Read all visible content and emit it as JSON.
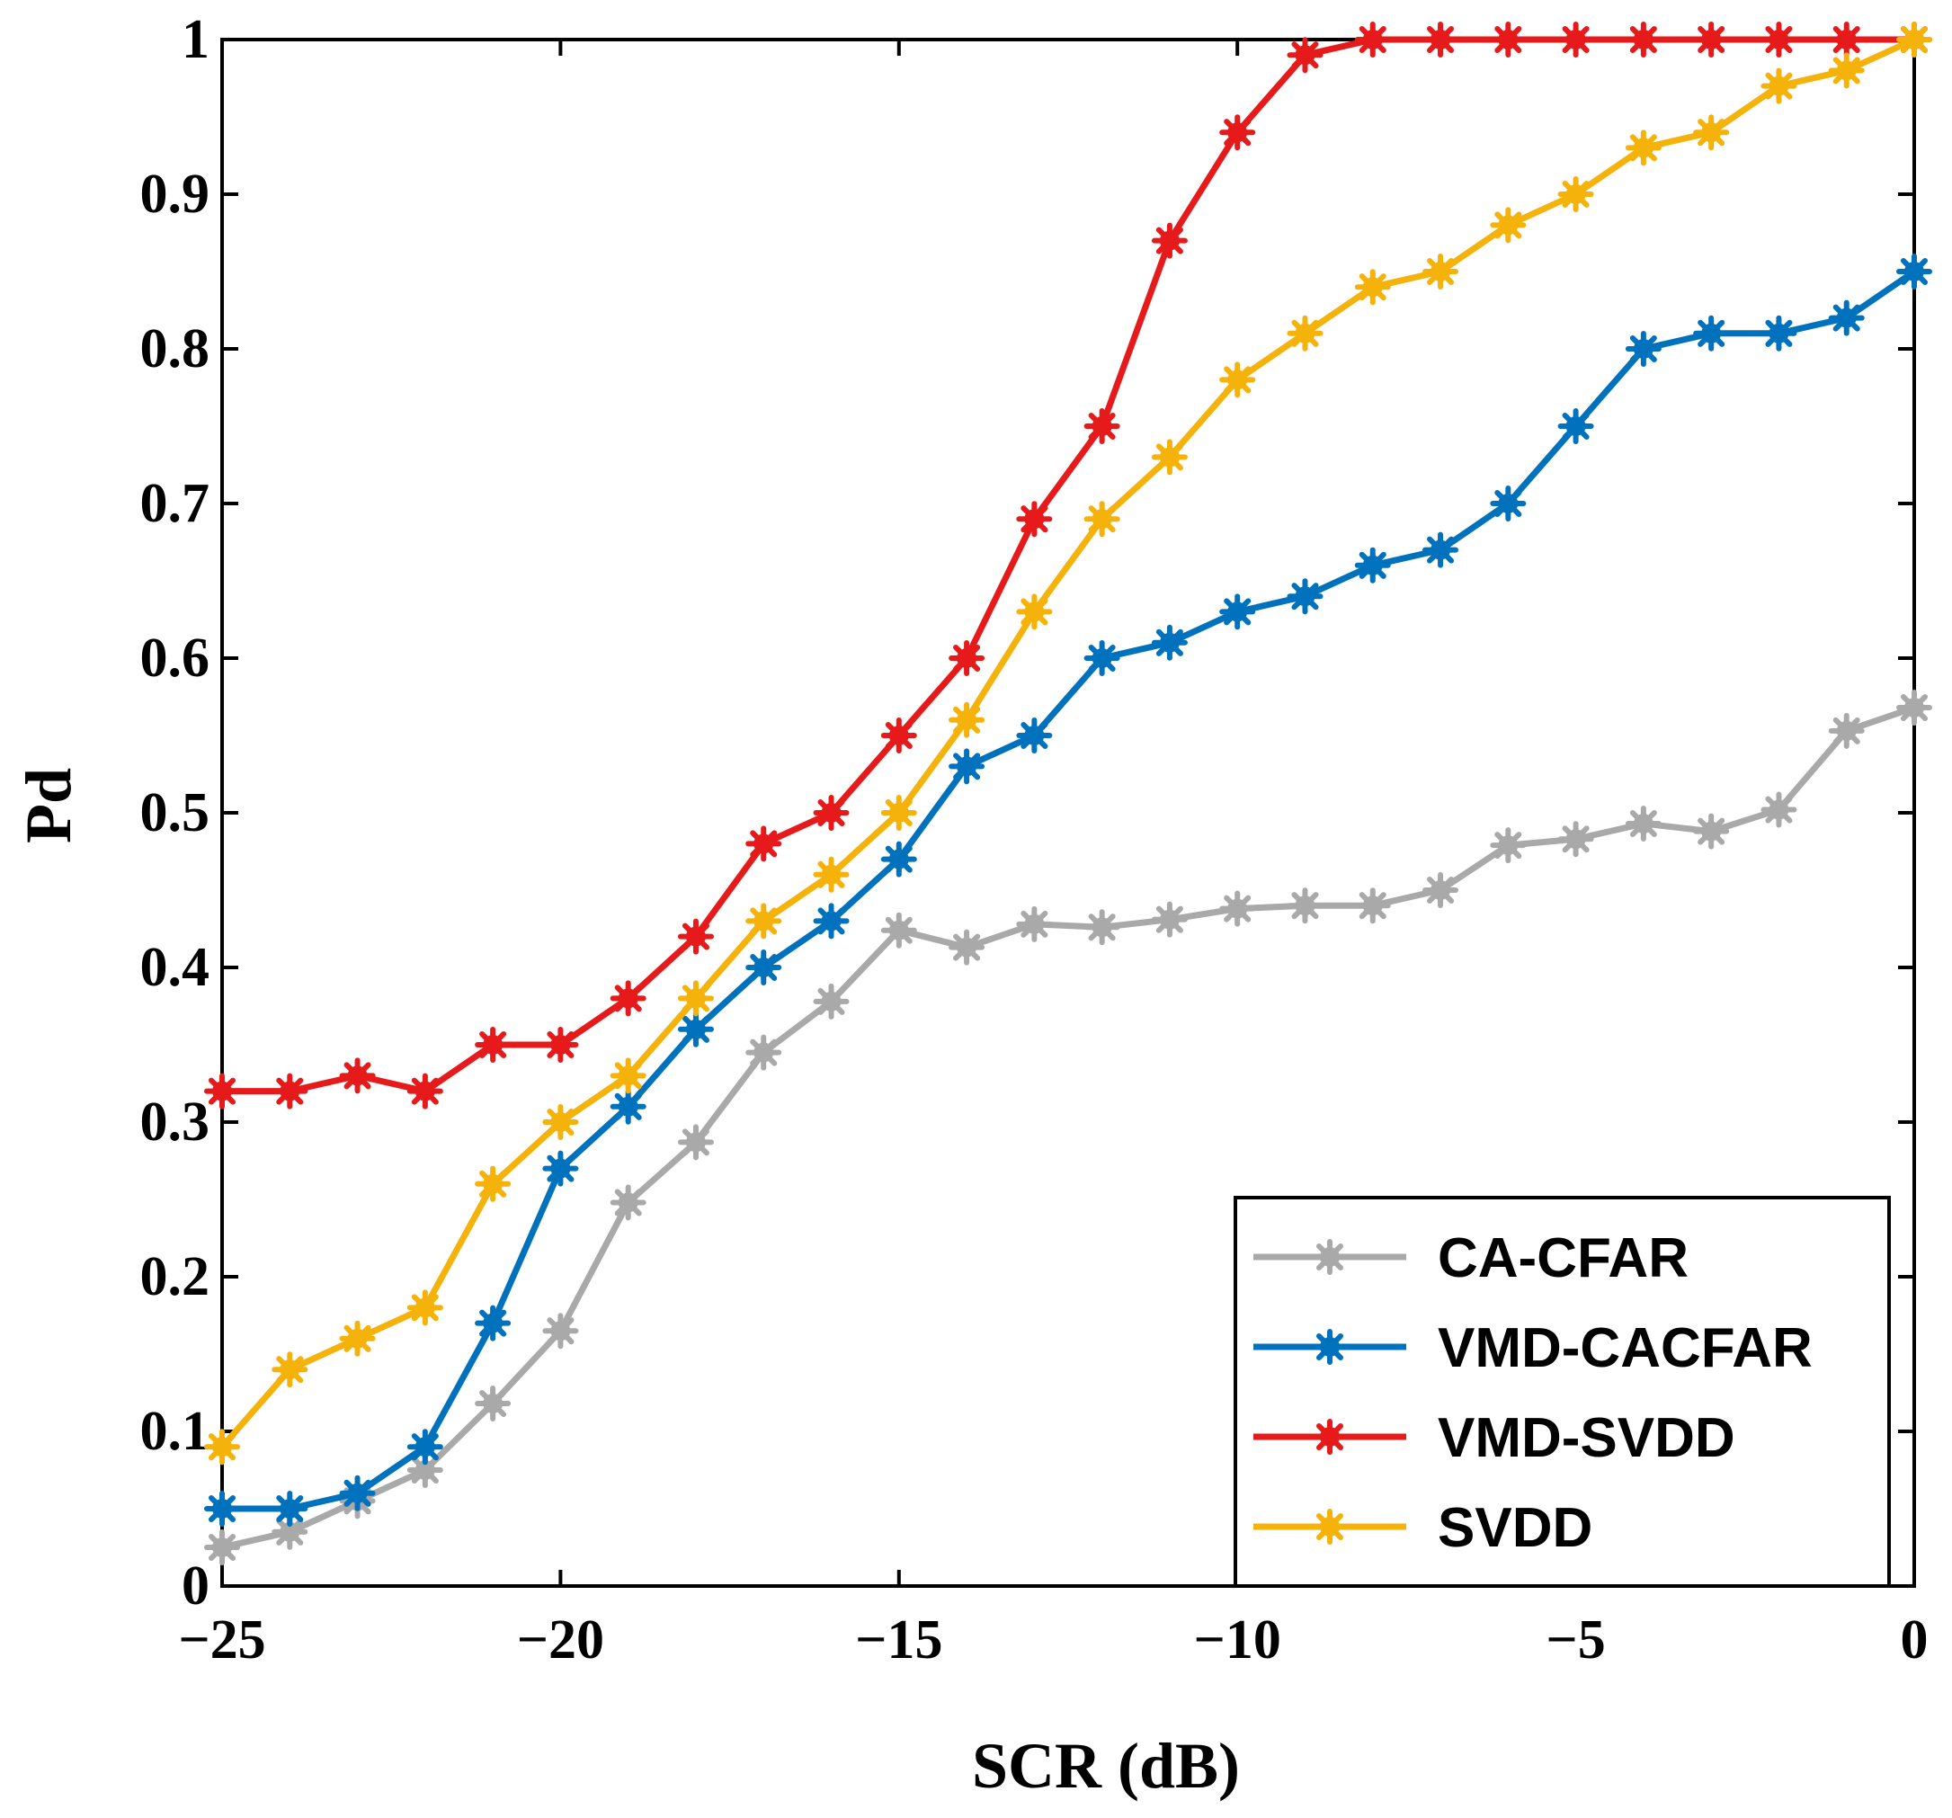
{
  "chart_data": {
    "type": "line",
    "title": "",
    "xlabel": "SCR (dB)",
    "ylabel": "Pd",
    "xlim": [
      -25,
      0
    ],
    "ylim": [
      0,
      1
    ],
    "xticks": [
      -25,
      -20,
      -15,
      -10,
      -5,
      0
    ],
    "xtick_labels": [
      "−25",
      "−20",
      "−15",
      "−10",
      "−5",
      "0"
    ],
    "yticks": [
      0,
      0.1,
      0.2,
      0.3,
      0.4,
      0.5,
      0.6,
      0.7,
      0.8,
      0.9,
      1
    ],
    "ytick_labels": [
      "0",
      "0.1",
      "0.2",
      "0.3",
      "0.4",
      "0.5",
      "0.6",
      "0.7",
      "0.8",
      "0.9",
      "1"
    ],
    "grid": false,
    "legend_position": "bottom-right",
    "x": [
      -25,
      -24,
      -23,
      -22,
      -21,
      -20,
      -19,
      -18,
      -17,
      -16,
      -15,
      -14,
      -13,
      -12,
      -11,
      -10,
      -9,
      -8,
      -7,
      -6,
      -5,
      -4,
      -3,
      -2,
      -1,
      0
    ],
    "series": [
      {
        "name": "CA-CFAR",
        "color": "#a9a9a9",
        "values": [
          0.025,
          0.035,
          0.055,
          0.075,
          0.118,
          0.165,
          0.248,
          0.287,
          0.345,
          0.378,
          0.424,
          0.413,
          0.428,
          0.426,
          0.431,
          0.438,
          0.44,
          0.44,
          0.45,
          0.479,
          0.483,
          0.493,
          0.488,
          0.502,
          0.553,
          0.568
        ]
      },
      {
        "name": "VMD-CACFAR",
        "color": "#0072bd",
        "values": [
          0.05,
          0.05,
          0.06,
          0.09,
          0.17,
          0.27,
          0.31,
          0.36,
          0.4,
          0.43,
          0.47,
          0.53,
          0.55,
          0.6,
          0.61,
          0.63,
          0.64,
          0.66,
          0.67,
          0.7,
          0.75,
          0.8,
          0.81,
          0.81,
          0.82,
          0.85
        ]
      },
      {
        "name": "VMD-SVDD",
        "color": "#e61a1a",
        "values": [
          0.32,
          0.32,
          0.33,
          0.32,
          0.35,
          0.35,
          0.38,
          0.42,
          0.48,
          0.5,
          0.55,
          0.6,
          0.69,
          0.75,
          0.87,
          0.94,
          0.99,
          1.0,
          1.0,
          1.0,
          1.0,
          1.0,
          1.0,
          1.0,
          1.0,
          1.0
        ]
      },
      {
        "name": "SVDD",
        "color": "#f5b20a",
        "values": [
          0.09,
          0.14,
          0.16,
          0.18,
          0.26,
          0.3,
          0.33,
          0.38,
          0.43,
          0.46,
          0.5,
          0.56,
          0.63,
          0.69,
          0.73,
          0.78,
          0.81,
          0.84,
          0.85,
          0.88,
          0.9,
          0.93,
          0.94,
          0.97,
          0.98,
          1.0
        ]
      }
    ]
  }
}
